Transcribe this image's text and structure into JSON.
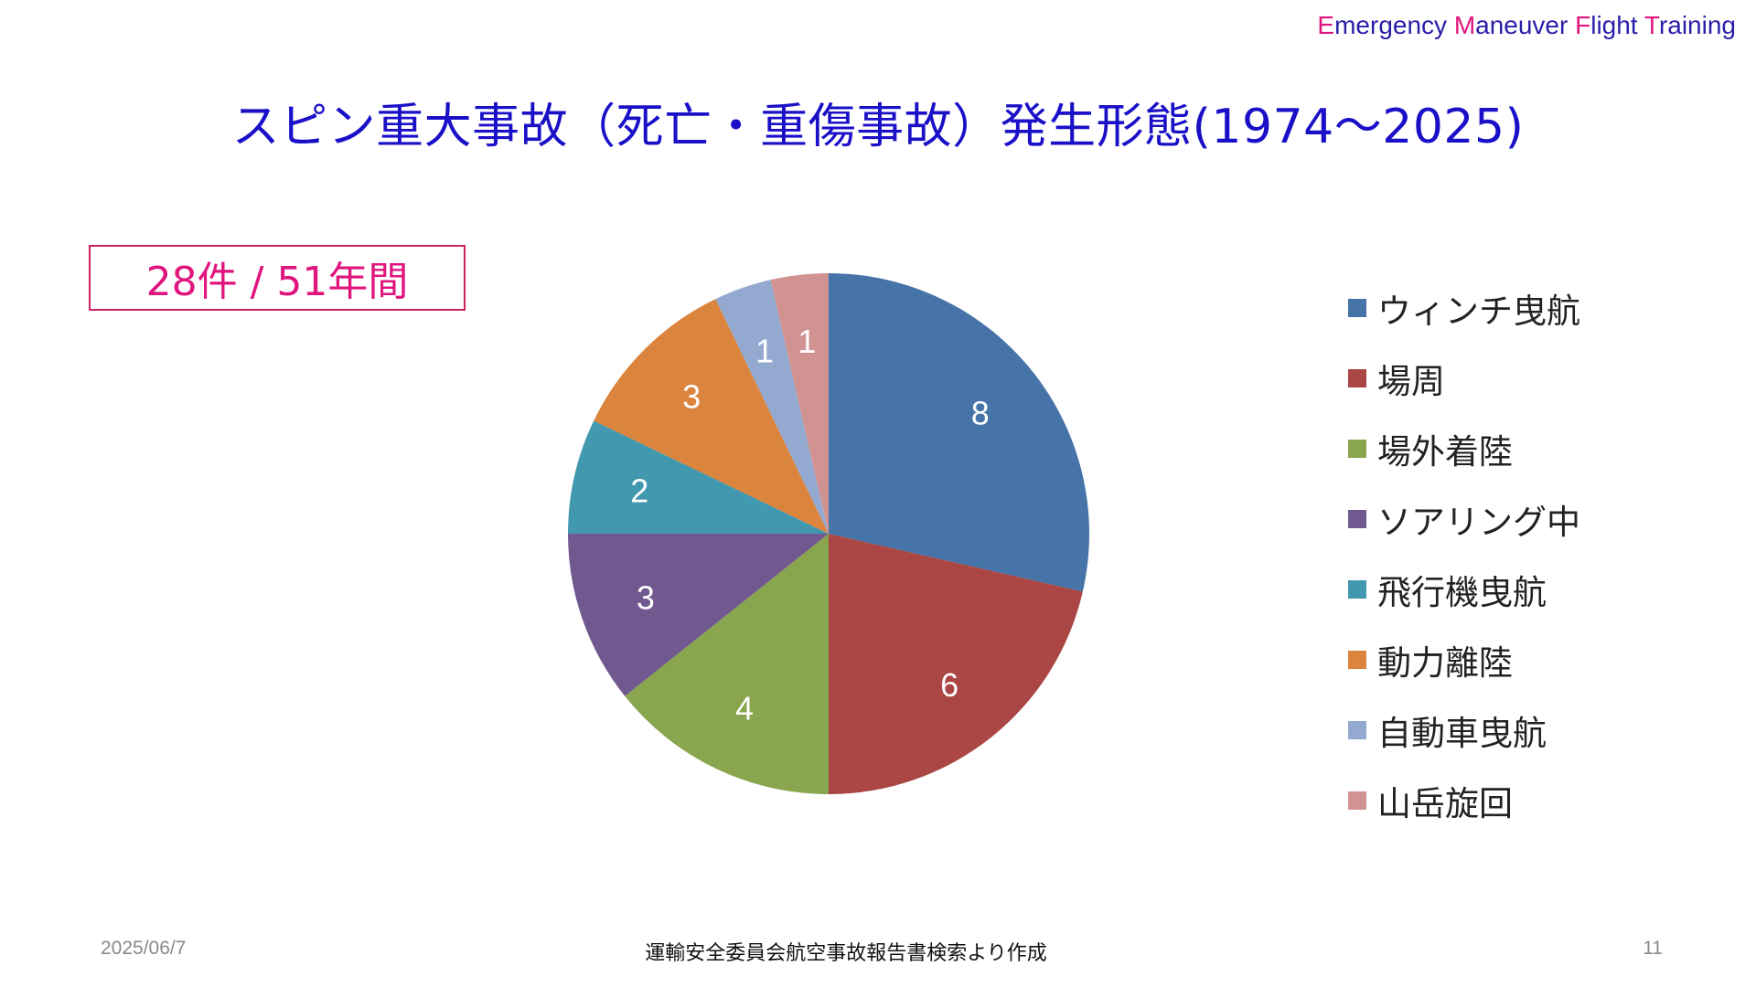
{
  "header": {
    "brand": [
      {
        "initial": "E",
        "rest": "mergency "
      },
      {
        "initial": "M",
        "rest": "aneuver "
      },
      {
        "initial": "F",
        "rest": "light "
      },
      {
        "initial": "T",
        "rest": "raining"
      }
    ],
    "title": "スピン重大事故（死亡・重傷事故）発生形態(1974～2025)"
  },
  "summary_box": "28件 / 51年間",
  "chart_data": {
    "type": "pie",
    "categories": [
      "ウィンチ曳航",
      "場周",
      "場外着陸",
      "ソアリング中",
      "飛行機曳航",
      "動力離陸",
      "自動車曳航",
      "山岳旋回"
    ],
    "values": [
      8,
      6,
      4,
      3,
      2,
      3,
      1,
      1
    ],
    "colors": [
      "#4673a8",
      "#aa4643",
      "#89a54e",
      "#71588f",
      "#4198af",
      "#db843d",
      "#93a9cf",
      "#d19392"
    ],
    "start_angle_deg": 0,
    "direction": "clockwise",
    "data_labels": true,
    "data_label_color": "#ffffff",
    "legend_position": "right"
  },
  "footer": {
    "date": "2025/06/7",
    "source": "運輸安全委員会航空事故報告書検索より作成",
    "page": "11"
  }
}
